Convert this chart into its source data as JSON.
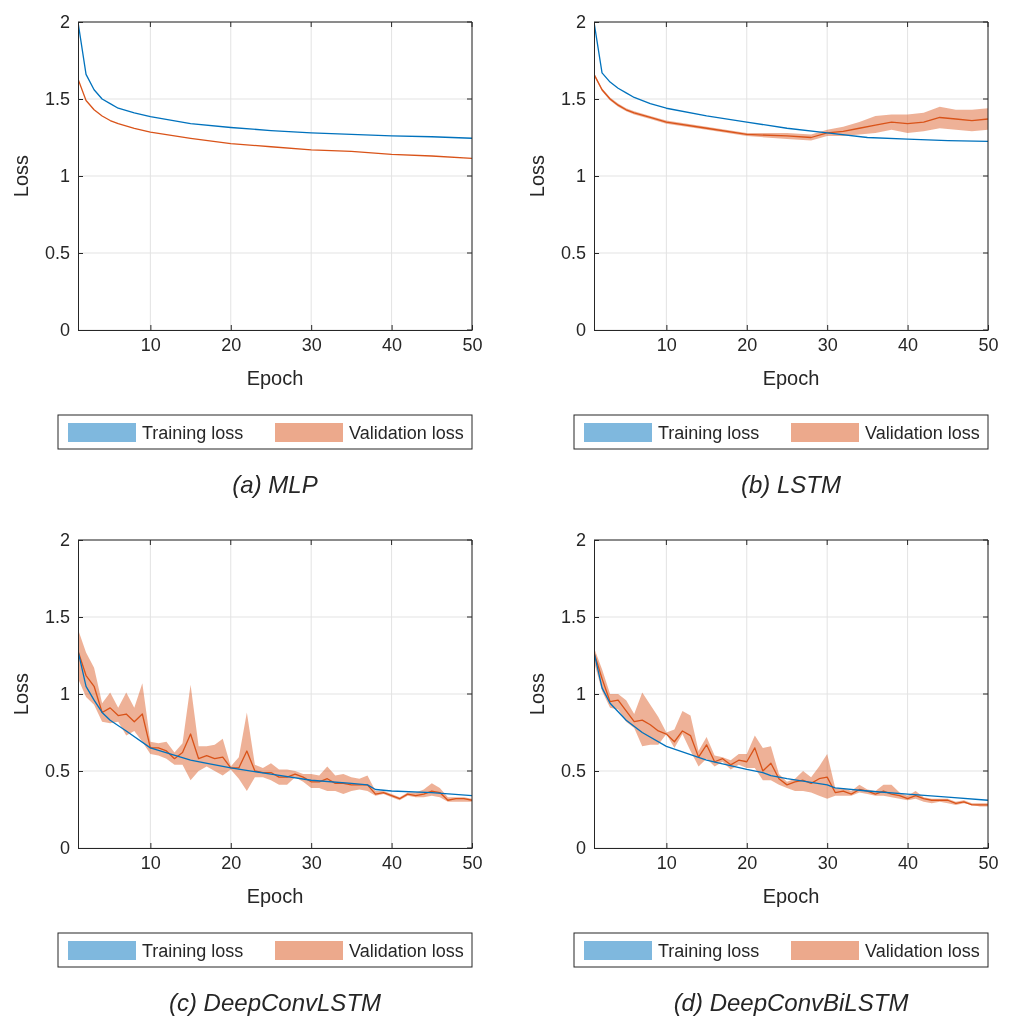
{
  "chart_data": [
    {
      "type": "line",
      "title": "(a) MLP",
      "xlabel": "Epoch",
      "ylabel": "Loss",
      "xlim": [
        1,
        50
      ],
      "xticks": [
        10,
        20,
        30,
        40,
        50
      ],
      "ylim": [
        0,
        2
      ],
      "yticks": [
        0,
        0.5,
        1,
        1.5,
        2
      ],
      "grid": true,
      "legend": "bottom",
      "series": [
        {
          "name": "Training loss",
          "color": "#0072bd",
          "x": [
            1,
            2,
            3,
            4,
            5,
            6,
            8,
            10,
            15,
            20,
            25,
            30,
            35,
            40,
            45,
            50
          ],
          "values": [
            2.0,
            1.66,
            1.56,
            1.5,
            1.47,
            1.44,
            1.41,
            1.385,
            1.34,
            1.315,
            1.295,
            1.28,
            1.27,
            1.26,
            1.255,
            1.245
          ]
        },
        {
          "name": "Validation loss",
          "color": "#d95319",
          "x": [
            1,
            2,
            3,
            4,
            5,
            6,
            8,
            10,
            15,
            20,
            25,
            30,
            35,
            40,
            45,
            50
          ],
          "values": [
            1.63,
            1.49,
            1.43,
            1.39,
            1.36,
            1.34,
            1.31,
            1.285,
            1.245,
            1.21,
            1.19,
            1.17,
            1.16,
            1.14,
            1.13,
            1.115
          ]
        }
      ]
    },
    {
      "type": "line",
      "title": "(b) LSTM",
      "xlabel": "Epoch",
      "ylabel": "Loss",
      "xlim": [
        1,
        50
      ],
      "xticks": [
        10,
        20,
        30,
        40,
        50
      ],
      "ylim": [
        0,
        2
      ],
      "yticks": [
        0,
        0.5,
        1,
        1.5,
        2
      ],
      "grid": true,
      "legend": "bottom",
      "series": [
        {
          "name": "Training loss",
          "color": "#0072bd",
          "x": [
            1,
            2,
            3,
            4,
            5,
            6,
            8,
            10,
            15,
            20,
            25,
            30,
            35,
            40,
            45,
            50
          ],
          "values": [
            2.0,
            1.67,
            1.61,
            1.57,
            1.54,
            1.51,
            1.47,
            1.44,
            1.39,
            1.35,
            1.31,
            1.28,
            1.25,
            1.24,
            1.23,
            1.225
          ]
        },
        {
          "name": "Validation loss",
          "color": "#d95319",
          "x": [
            1,
            2,
            3,
            4,
            5,
            6,
            8,
            10,
            15,
            20,
            25,
            28,
            30,
            32,
            34,
            36,
            38,
            40,
            42,
            44,
            46,
            48,
            50
          ],
          "values": [
            1.66,
            1.56,
            1.5,
            1.46,
            1.43,
            1.41,
            1.38,
            1.35,
            1.31,
            1.27,
            1.26,
            1.25,
            1.28,
            1.29,
            1.31,
            1.33,
            1.35,
            1.34,
            1.35,
            1.38,
            1.37,
            1.36,
            1.37
          ],
          "lower": [
            1.65,
            1.55,
            1.49,
            1.45,
            1.42,
            1.4,
            1.37,
            1.34,
            1.3,
            1.26,
            1.24,
            1.23,
            1.26,
            1.26,
            1.27,
            1.28,
            1.3,
            1.28,
            1.29,
            1.31,
            1.3,
            1.29,
            1.3
          ],
          "upper": [
            1.67,
            1.57,
            1.51,
            1.47,
            1.44,
            1.42,
            1.39,
            1.36,
            1.32,
            1.28,
            1.28,
            1.27,
            1.3,
            1.32,
            1.35,
            1.39,
            1.4,
            1.4,
            1.41,
            1.45,
            1.43,
            1.43,
            1.44
          ]
        }
      ]
    },
    {
      "type": "line",
      "title": "(c) DeepConvLSTM",
      "xlabel": "Epoch",
      "ylabel": "Loss",
      "xlim": [
        1,
        50
      ],
      "xticks": [
        10,
        20,
        30,
        40,
        50
      ],
      "ylim": [
        0,
        2
      ],
      "yticks": [
        0,
        0.5,
        1,
        1.5,
        2
      ],
      "grid": true,
      "legend": "bottom",
      "series": [
        {
          "name": "Training loss",
          "color": "#0072bd",
          "x": [
            1,
            2,
            3,
            4,
            5,
            7,
            10,
            15,
            20,
            25,
            30,
            35,
            37,
            38,
            40,
            45,
            50
          ],
          "values": [
            1.28,
            1.05,
            0.96,
            0.88,
            0.83,
            0.76,
            0.65,
            0.57,
            0.52,
            0.48,
            0.44,
            0.42,
            0.41,
            0.38,
            0.37,
            0.36,
            0.34
          ]
        },
        {
          "name": "Validation loss",
          "color": "#d95319",
          "x": [
            1,
            2,
            3,
            4,
            5,
            6,
            7,
            8,
            9,
            10,
            11,
            12,
            13,
            14,
            15,
            16,
            17,
            18,
            19,
            20,
            21,
            22,
            23,
            24,
            25,
            26,
            27,
            28,
            29,
            30,
            31,
            32,
            33,
            34,
            35,
            36,
            37,
            38,
            39,
            40,
            41,
            42,
            43,
            44,
            45,
            46,
            47,
            48,
            49,
            50
          ],
          "values": [
            1.28,
            1.12,
            1.05,
            0.88,
            0.91,
            0.86,
            0.87,
            0.82,
            0.87,
            0.65,
            0.65,
            0.63,
            0.58,
            0.62,
            0.74,
            0.58,
            0.6,
            0.58,
            0.59,
            0.52,
            0.52,
            0.63,
            0.5,
            0.49,
            0.49,
            0.46,
            0.46,
            0.48,
            0.46,
            0.43,
            0.43,
            0.45,
            0.42,
            0.42,
            0.41,
            0.41,
            0.41,
            0.35,
            0.36,
            0.34,
            0.32,
            0.35,
            0.34,
            0.35,
            0.37,
            0.36,
            0.31,
            0.32,
            0.32,
            0.31
          ],
          "lower": [
            1.1,
            0.98,
            0.93,
            0.82,
            0.81,
            0.82,
            0.73,
            0.76,
            0.69,
            0.61,
            0.6,
            0.58,
            0.54,
            0.54,
            0.44,
            0.5,
            0.53,
            0.5,
            0.47,
            0.51,
            0.45,
            0.37,
            0.46,
            0.46,
            0.44,
            0.41,
            0.41,
            0.46,
            0.43,
            0.39,
            0.39,
            0.37,
            0.37,
            0.35,
            0.37,
            0.38,
            0.37,
            0.34,
            0.35,
            0.33,
            0.31,
            0.34,
            0.33,
            0.33,
            0.34,
            0.33,
            0.3,
            0.3,
            0.3,
            0.3
          ],
          "upper": [
            1.42,
            1.27,
            1.17,
            0.94,
            1.01,
            0.91,
            1.01,
            0.91,
            1.07,
            0.69,
            0.68,
            0.69,
            0.62,
            0.68,
            1.06,
            0.66,
            0.66,
            0.67,
            0.71,
            0.53,
            0.59,
            0.88,
            0.54,
            0.52,
            0.55,
            0.51,
            0.51,
            0.5,
            0.48,
            0.48,
            0.47,
            0.53,
            0.47,
            0.48,
            0.46,
            0.45,
            0.47,
            0.37,
            0.37,
            0.35,
            0.33,
            0.36,
            0.36,
            0.38,
            0.42,
            0.39,
            0.33,
            0.33,
            0.33,
            0.32
          ]
        }
      ]
    },
    {
      "type": "line",
      "title": "(d) DeepConvBiLSTM",
      "xlabel": "Epoch",
      "ylabel": "Loss",
      "xlim": [
        1,
        50
      ],
      "xticks": [
        10,
        20,
        30,
        40,
        50
      ],
      "ylim": [
        0,
        2
      ],
      "yticks": [
        0,
        0.5,
        1,
        1.5,
        2
      ],
      "grid": true,
      "legend": "bottom",
      "series": [
        {
          "name": "Training loss",
          "color": "#0072bd",
          "x": [
            1,
            2,
            3,
            5,
            7,
            10,
            15,
            20,
            22,
            23,
            25,
            30,
            31,
            35,
            40,
            45,
            50
          ],
          "values": [
            1.27,
            1.04,
            0.94,
            0.83,
            0.75,
            0.66,
            0.57,
            0.51,
            0.49,
            0.47,
            0.45,
            0.41,
            0.39,
            0.37,
            0.35,
            0.33,
            0.31
          ]
        },
        {
          "name": "Validation loss",
          "color": "#d95319",
          "x": [
            1,
            2,
            3,
            4,
            5,
            6,
            7,
            8,
            9,
            10,
            11,
            12,
            13,
            14,
            15,
            16,
            17,
            18,
            19,
            20,
            21,
            22,
            23,
            24,
            25,
            26,
            27,
            28,
            29,
            30,
            31,
            32,
            33,
            34,
            35,
            36,
            37,
            38,
            39,
            40,
            41,
            42,
            43,
            44,
            45,
            46,
            47,
            48,
            49,
            50
          ],
          "values": [
            1.27,
            1.1,
            0.95,
            0.96,
            0.89,
            0.82,
            0.83,
            0.8,
            0.76,
            0.74,
            0.69,
            0.76,
            0.73,
            0.59,
            0.67,
            0.56,
            0.58,
            0.54,
            0.57,
            0.56,
            0.65,
            0.5,
            0.55,
            0.45,
            0.41,
            0.43,
            0.44,
            0.42,
            0.45,
            0.46,
            0.36,
            0.37,
            0.35,
            0.38,
            0.37,
            0.35,
            0.37,
            0.35,
            0.34,
            0.32,
            0.34,
            0.32,
            0.31,
            0.31,
            0.31,
            0.29,
            0.3,
            0.28,
            0.28,
            0.28
          ],
          "lower": [
            1.21,
            1.02,
            0.91,
            0.9,
            0.82,
            0.78,
            0.66,
            0.67,
            0.67,
            0.74,
            0.65,
            0.74,
            0.63,
            0.53,
            0.58,
            0.53,
            0.56,
            0.51,
            0.54,
            0.52,
            0.52,
            0.44,
            0.44,
            0.41,
            0.39,
            0.37,
            0.37,
            0.36,
            0.34,
            0.32,
            0.34,
            0.34,
            0.34,
            0.36,
            0.35,
            0.34,
            0.34,
            0.33,
            0.32,
            0.31,
            0.32,
            0.3,
            0.29,
            0.3,
            0.29,
            0.28,
            0.29,
            0.28,
            0.27,
            0.27
          ],
          "upper": [
            1.3,
            1.16,
            1.0,
            1.0,
            0.96,
            0.87,
            1.01,
            0.93,
            0.85,
            0.75,
            0.77,
            0.89,
            0.86,
            0.63,
            0.72,
            0.6,
            0.59,
            0.57,
            0.61,
            0.61,
            0.73,
            0.65,
            0.66,
            0.48,
            0.43,
            0.45,
            0.5,
            0.46,
            0.53,
            0.61,
            0.39,
            0.39,
            0.37,
            0.41,
            0.38,
            0.37,
            0.41,
            0.41,
            0.36,
            0.34,
            0.37,
            0.33,
            0.32,
            0.32,
            0.32,
            0.3,
            0.31,
            0.29,
            0.29,
            0.29
          ]
        }
      ]
    }
  ]
}
